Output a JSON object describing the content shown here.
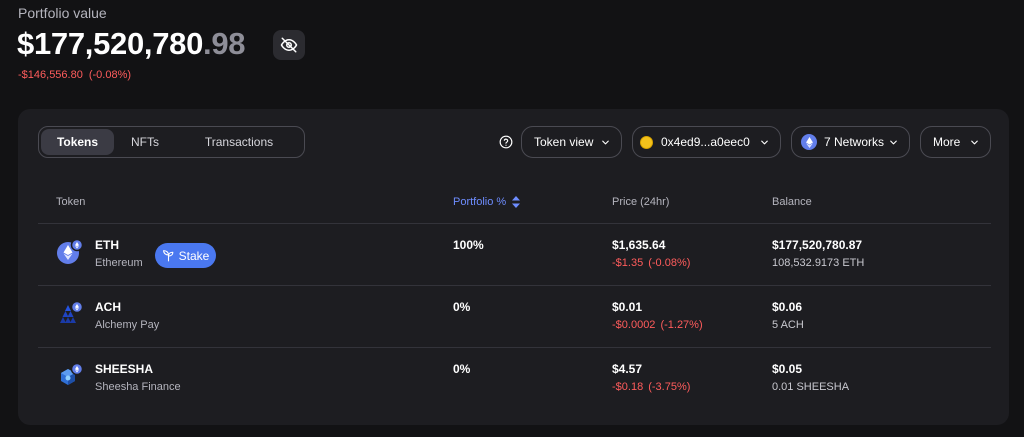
{
  "portfolio": {
    "label": "Portfolio value",
    "amount_main": "$177,520,780",
    "amount_cents": ".98",
    "change_value": "-$146,556.80",
    "change_pct": "(-0.08%)"
  },
  "tabs": [
    {
      "label": "Tokens",
      "active": true
    },
    {
      "label": "NFTs",
      "active": false
    },
    {
      "label": "Transactions",
      "active": false
    }
  ],
  "controls": {
    "token_view": "Token view",
    "account": "0x4ed9...a0eec0",
    "networks": "7 Networks",
    "more": "More"
  },
  "table": {
    "headers": {
      "token": "Token",
      "portfolio": "Portfolio %",
      "price": "Price (24hr)",
      "balance": "Balance"
    },
    "rows": [
      {
        "symbol": "ETH",
        "name": "Ethereum",
        "stake": "Stake",
        "portfolio_pct": "100%",
        "price": "$1,635.64",
        "price_change": "-$1.35",
        "price_change_pct": "(-0.08%)",
        "balance_usd": "$177,520,780.87",
        "balance_token": "108,532.9173 ETH"
      },
      {
        "symbol": "ACH",
        "name": "Alchemy Pay",
        "portfolio_pct": "0%",
        "price": "$0.01",
        "price_change": "-$0.0002",
        "price_change_pct": "(-1.27%)",
        "balance_usd": "$0.06",
        "balance_token": "5 ACH"
      },
      {
        "symbol": "SHEESHA",
        "name": "Sheesha Finance",
        "portfolio_pct": "0%",
        "price": "$4.57",
        "price_change": "-$0.18",
        "price_change_pct": "(-3.75%)",
        "balance_usd": "$0.05",
        "balance_token": "0.01 SHEESHA"
      }
    ]
  },
  "colors": {
    "background": "#121214",
    "panel": "#1d1d21",
    "accent": "#4a78f0",
    "negative": "#ff5c5c",
    "eth": "#627eea"
  },
  "icons": [
    "eye-off-icon",
    "help-circle-icon",
    "chevron-down-icon",
    "sort-icon",
    "sprout-icon",
    "eth-icon",
    "ach-icon",
    "sheesha-icon",
    "network-badge-icon"
  ]
}
